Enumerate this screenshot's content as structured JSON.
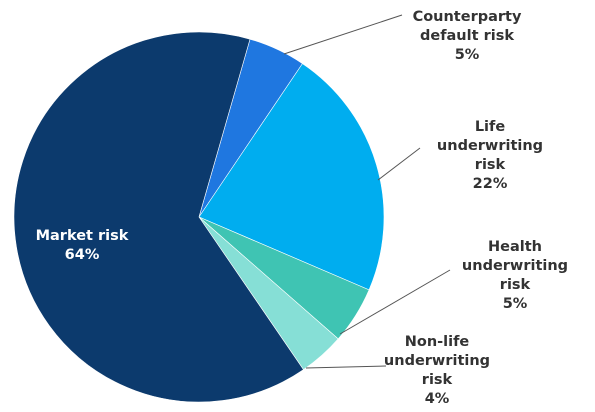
{
  "chart_data": {
    "type": "pie",
    "categories": [
      "Counterparty default risk",
      "Life underwriting risk",
      "Health underwriting risk",
      "Non-life underwriting risk",
      "Market risk"
    ],
    "values": [
      5,
      22,
      5,
      4,
      64
    ],
    "value_labels": [
      "5%",
      "22%",
      "5%",
      "4%",
      "64%"
    ],
    "colors": [
      "#1f77e0",
      "#00adef",
      "#3fc4b3",
      "#86dfd6",
      "#0c3a6d"
    ]
  }
}
